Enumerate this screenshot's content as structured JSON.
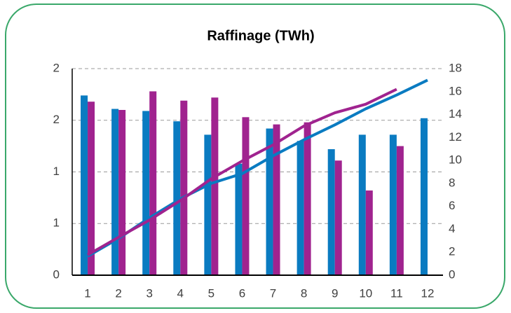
{
  "chart_data": {
    "type": "bar",
    "title": "Raffinage (TWh)",
    "categories": [
      "1",
      "2",
      "3",
      "4",
      "5",
      "6",
      "7",
      "8",
      "9",
      "10",
      "11",
      "12"
    ],
    "ylim": [
      0,
      2
    ],
    "yticks": [
      0,
      {
        "value": 0.5,
        "label": "1"
      },
      1,
      {
        "value": 1.5,
        "label": "2"
      },
      2
    ],
    "y2lim": [
      0,
      18
    ],
    "y2ticks": [
      0,
      2,
      4,
      6,
      8,
      10,
      12,
      14,
      16,
      18
    ],
    "grid": true,
    "series": [
      {
        "type": "bar",
        "color": "#0a7bc1",
        "values": [
          1.74,
          1.61,
          1.59,
          1.49,
          1.36,
          1.08,
          1.42,
          1.3,
          1.22,
          1.36,
          1.36,
          1.52
        ]
      },
      {
        "type": "bar",
        "color": "#a0238f",
        "values": [
          1.68,
          1.6,
          1.78,
          1.69,
          1.72,
          1.53,
          1.46,
          1.48,
          1.11,
          0.82,
          1.25,
          null
        ]
      },
      {
        "type": "line",
        "axis": "y2",
        "color": "#0a7bc1",
        "values": [
          1.65,
          3.2,
          5.0,
          6.65,
          8.0,
          8.85,
          10.4,
          11.8,
          13.1,
          14.5,
          15.7,
          17.0
        ]
      },
      {
        "type": "line",
        "axis": "y2",
        "color": "#a0238f",
        "values": [
          1.77,
          3.3,
          4.8,
          6.5,
          8.4,
          9.95,
          11.35,
          13.0,
          14.15,
          14.9,
          16.2,
          null
        ]
      }
    ]
  }
}
